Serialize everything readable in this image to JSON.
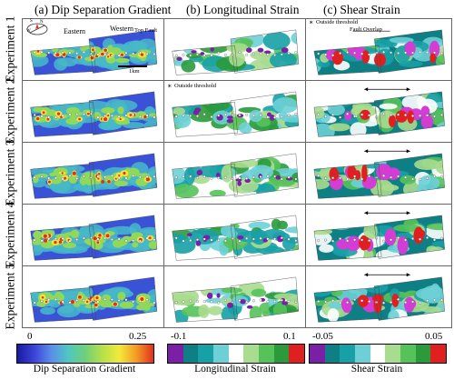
{
  "columns": [
    {
      "label": "(a) Dip Separation Gradient"
    },
    {
      "label": "(b) Longitudinal Strain"
    },
    {
      "label": "(c) Shear Strain"
    }
  ],
  "rows": [
    {
      "label": "Experiment 1"
    },
    {
      "label": "Experiment 2"
    },
    {
      "label": "Experiment 3"
    },
    {
      "label": "Experiment 4"
    },
    {
      "label": "Experiment 5"
    }
  ],
  "annotations": {
    "eastern": "Eastern",
    "western": "Western",
    "top_fault": "Top Fault",
    "scale": "1km",
    "outside_threshold": "Outside threshold",
    "fault_overlap": "Fault Overlap",
    "asterisk": "∗",
    "compass_n": "N",
    "compass_s": "S",
    "compass_w": "W"
  },
  "colorbars": [
    {
      "title": "Dip Separation Gradient",
      "min": "0",
      "max": "0.25",
      "colors": [
        "#1a1aa0",
        "#3a44d8",
        "#5a8fe8",
        "#4fc7c2",
        "#6fd07a",
        "#b6e04a",
        "#f3e93c",
        "#f39a24",
        "#e0301e"
      ]
    },
    {
      "title": "Longitudinal Strain",
      "min": "-0.1",
      "max": "0.1",
      "colors": [
        "#7a1fa6",
        "#0f7f86",
        "#17a1a6",
        "#6dd0d6",
        "#ffffff",
        "#a8dc8e",
        "#56c25a",
        "#2a9a3a",
        "#e02020"
      ]
    },
    {
      "title": "Shear Strain",
      "min": "-0.05",
      "max": "0.05",
      "colors": [
        "#7a1fa6",
        "#0f7f86",
        "#17a1a6",
        "#6dd0d6",
        "#ffffff",
        "#a8dc8e",
        "#56c25a",
        "#2a9a3a",
        "#e02020"
      ]
    }
  ],
  "panel_colors": {
    "dip": {
      "bg": "#3a52d6",
      "mid": "#47b8c8",
      "hi": "#8fd85a",
      "peak": "#f5e23a",
      "hot": "#e0301e",
      "edge": "#1d1d8f"
    },
    "long": {
      "bg": "#ffffff",
      "a": "#a8dc8e",
      "b": "#56c25a",
      "c": "#2a9a3a",
      "d": "#6dd0d6",
      "e": "#17a1a6",
      "f": "#7a1fa6"
    },
    "shear": {
      "bg": "#0f7f86",
      "a": "#17a1a6",
      "b": "#6dd0d6",
      "c": "#ffffff",
      "d": "#a8dc8e",
      "e": "#56c25a",
      "f": "#d43dd4",
      "g": "#e02020"
    }
  }
}
